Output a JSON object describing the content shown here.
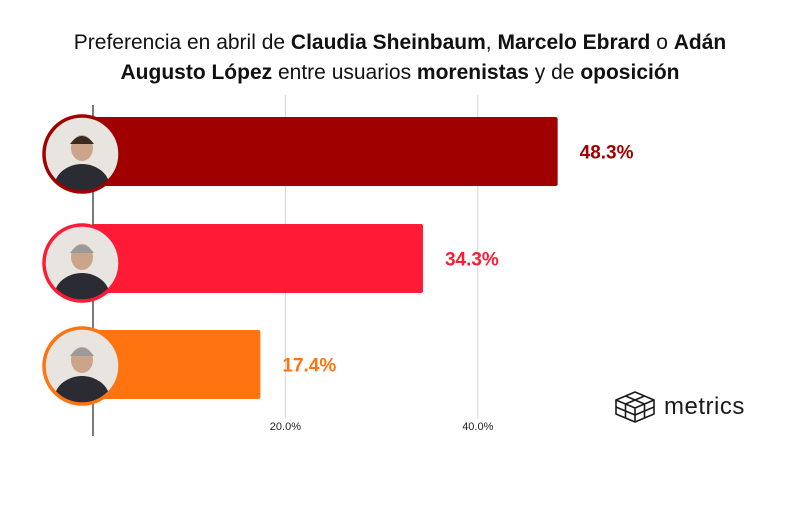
{
  "title": {
    "line1": [
      {
        "t": "Preferencia en abril de ",
        "b": false
      },
      {
        "t": "Claudia Sheinbaum",
        "b": true
      },
      {
        "t": ", ",
        "b": false
      },
      {
        "t": "Marcelo Ebrard",
        "b": true
      },
      {
        "t": " o ",
        "b": false
      },
      {
        "t": "Adán",
        "b": true
      }
    ],
    "line2": [
      {
        "t": "Augusto López",
        "b": true
      },
      {
        "t": " entre usuarios ",
        "b": false
      },
      {
        "t": "morenistas",
        "b": true
      },
      {
        "t": " y de ",
        "b": false
      },
      {
        "t": "oposición",
        "b": true
      }
    ]
  },
  "chart_data": {
    "type": "bar",
    "orientation": "horizontal",
    "categories": [
      "Claudia Sheinbaum",
      "Marcelo Ebrard",
      "Adán Augusto López"
    ],
    "values": [
      48.3,
      34.3,
      17.4
    ],
    "value_labels": [
      "48.3%",
      "34.3%",
      "17.4%"
    ],
    "colors": [
      "#a10000",
      "#ff1a35",
      "#ff7410"
    ],
    "x_ticks": [
      20,
      40
    ],
    "x_tick_labels": [
      "20.0%",
      "40.0%"
    ],
    "xlim": [
      0,
      50
    ],
    "grid": "vertical"
  },
  "logo": {
    "text": "metrics",
    "icon": "cube-grid-icon"
  }
}
